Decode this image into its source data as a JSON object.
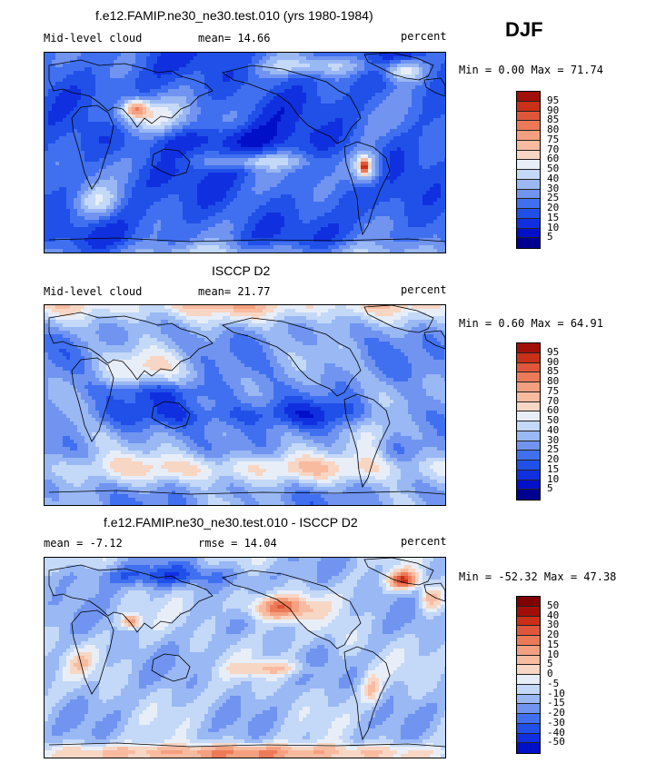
{
  "season": "DJF",
  "colors": {
    "ramp": [
      "#000090",
      "#0010c8",
      "#1030e0",
      "#2050e8",
      "#4070f0",
      "#7094f0",
      "#99b8f4",
      "#c4d8f8",
      "#e8eef8",
      "#f8d6c4",
      "#f8bba0",
      "#f4a080",
      "#ec7a58",
      "#e0563a",
      "#c83018",
      "#a01008",
      "#800000"
    ],
    "coast": "#000000"
  },
  "panels": [
    {
      "title": "f.e12.FAMIP.ne30_ne30.test.010 (yrs 1980-1984)",
      "left_label": "Mid-level cloud",
      "center_label": "mean=  14.66",
      "right_label": "percent",
      "minmax": "Min =   0.00 Max =  71.74",
      "colorbar_labels": [
        "95",
        "90",
        "85",
        "80",
        "75",
        "70",
        "60",
        "50",
        "40",
        "30",
        "25",
        "20",
        "15",
        "10",
        "5"
      ],
      "palette_offset": 1,
      "field": "model"
    },
    {
      "title": "ISCCP D2",
      "left_label": "Mid-level cloud",
      "center_label": "mean=  21.77",
      "right_label": "percent",
      "minmax": "Min =   0.60 Max =  64.91",
      "colorbar_labels": [
        "95",
        "90",
        "85",
        "80",
        "75",
        "70",
        "60",
        "50",
        "40",
        "30",
        "25",
        "20",
        "15",
        "10",
        "5"
      ],
      "palette_offset": 1,
      "field": "obs"
    },
    {
      "title": "f.e12.FAMIP.ne30_ne30.test.010 - ISCCP D2",
      "left_label": "mean =  -7.12",
      "center_label": "rmse =  14.04",
      "right_label": "percent",
      "minmax": "Min = -52.32 Max =  47.38",
      "colorbar_labels": [
        "50",
        "40",
        "30",
        "20",
        "15",
        "10",
        "5",
        "0",
        "-5",
        "-10",
        "-15",
        "-20",
        "-30",
        "-40",
        "-50"
      ],
      "palette_offset": 0,
      "field": "diff"
    }
  ]
}
